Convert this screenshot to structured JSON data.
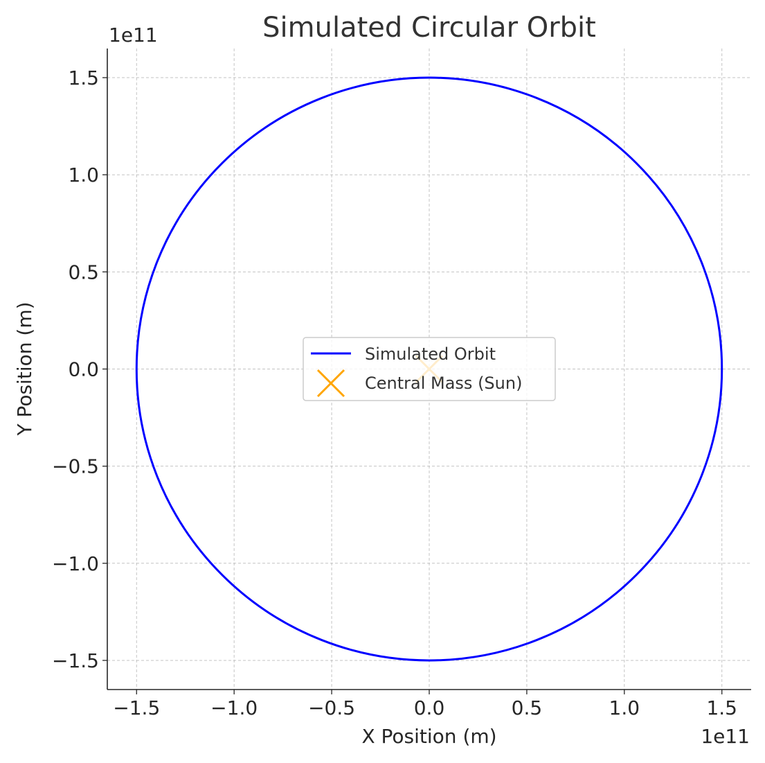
{
  "chart_data": {
    "type": "line",
    "title": "Simulated Circular Orbit",
    "xlabel": "X Position (m)",
    "ylabel": "Y Position (m)",
    "x_offset_label": "1e11",
    "y_offset_label": "1e11",
    "xlim": [
      -165000000000.0,
      165000000000.0
    ],
    "ylim": [
      -165000000000.0,
      165000000000.0
    ],
    "xticks": [
      -150000000000.0,
      -100000000000.0,
      -50000000000.0,
      0,
      50000000000.0,
      100000000000.0,
      150000000000.0
    ],
    "yticks": [
      -150000000000.0,
      -100000000000.0,
      -50000000000.0,
      0,
      50000000000.0,
      100000000000.0,
      150000000000.0
    ],
    "xtick_labels": [
      "−1.5",
      "−1.0",
      "−0.5",
      "0.0",
      "0.5",
      "1.0",
      "1.5"
    ],
    "ytick_labels": [
      "−1.5",
      "−1.0",
      "−0.5",
      "0.0",
      "0.5",
      "1.0",
      "1.5"
    ],
    "grid": true,
    "legend_position": "center",
    "series": [
      {
        "name": "Simulated Orbit",
        "kind": "line",
        "color": "#0000ff",
        "shape": "circle",
        "center": [
          0,
          0
        ],
        "radius": 150000000000.0
      },
      {
        "name": "Central Mass (Sun)",
        "kind": "marker",
        "marker": "x",
        "color": "#ffa500",
        "x": [
          0
        ],
        "y": [
          0
        ]
      }
    ]
  }
}
